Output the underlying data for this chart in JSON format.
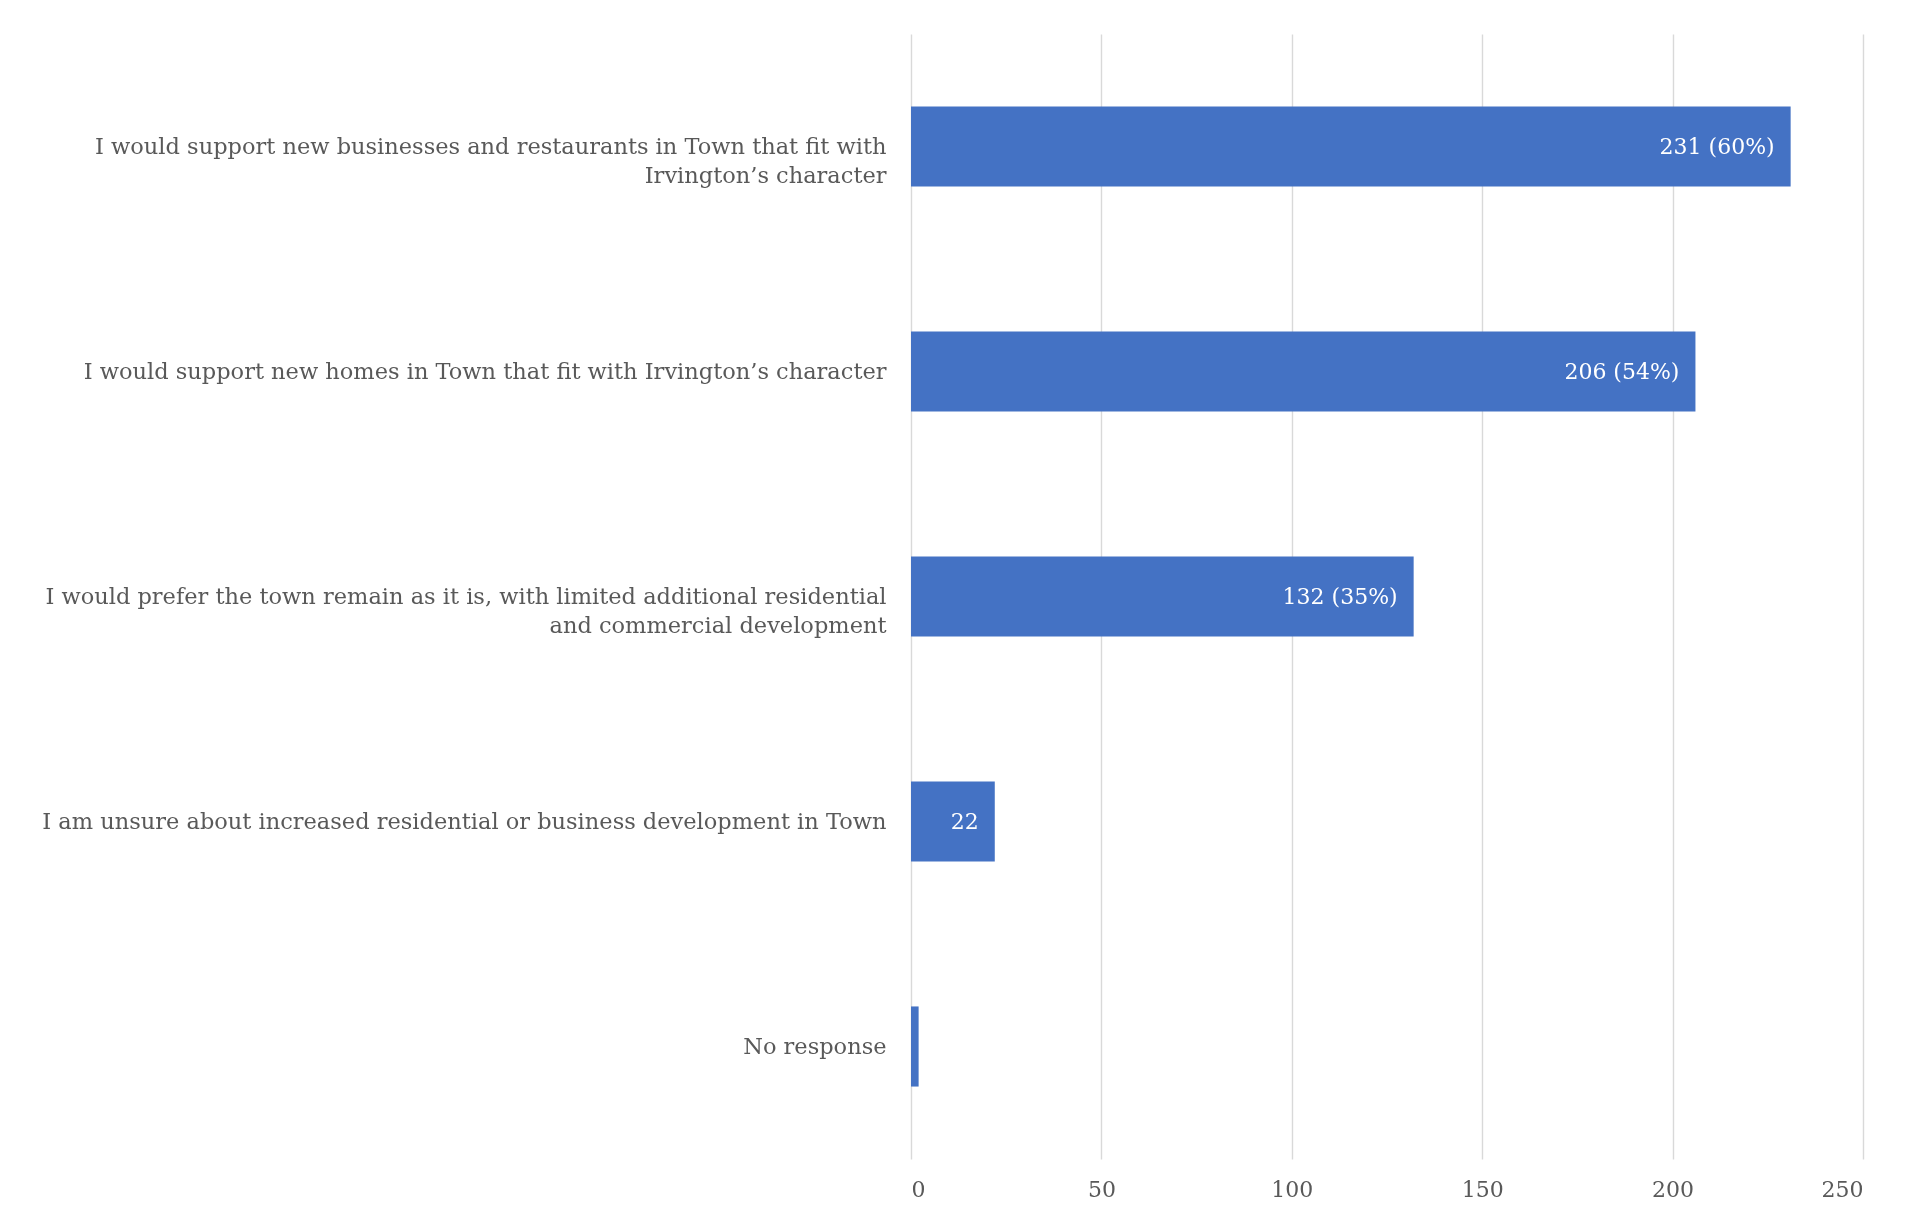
{
  "chart_data": {
    "type": "bar",
    "orientation": "horizontal",
    "categories": [
      "I would support new businesses and restaurants in Town that fit with Irvington’s character",
      "I would support new homes in Town that fit with Irvington’s character",
      "I would prefer the town remain as it is, with limited additional residential and commercial development",
      "I am unsure about increased residential or business development in Town",
      "No response"
    ],
    "values": [
      231,
      206,
      132,
      22,
      2
    ],
    "value_labels": [
      "231 (60%)",
      "206 (54%)",
      "132 (35%)",
      "22",
      null
    ],
    "color": "#4472c4",
    "xlim": [
      0,
      250
    ],
    "xticks": [
      0,
      50,
      100,
      150,
      200,
      250
    ],
    "grid": "x"
  }
}
